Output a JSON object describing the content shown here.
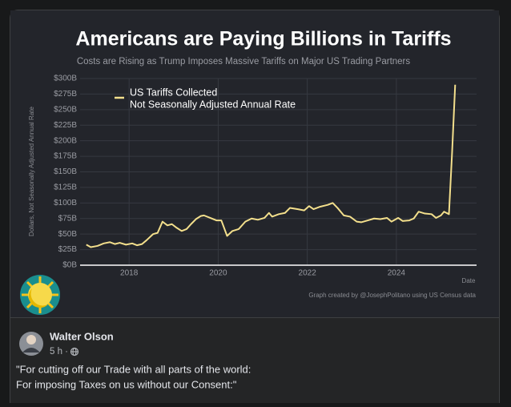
{
  "chart_data": {
    "type": "line",
    "title": "Americans are Paying Billions in Tariffs",
    "subtitle": "Costs are Rising as Trump Imposes Massive Tariffs on Major US Trading Partners",
    "y_label": "Dollars, Not Seasonally Adjusted Annual Rate",
    "x_label": "Date",
    "legend_note": "Not Seasonally Adjusted Annual Rate",
    "caption": "Graph created by @JosephPolitano using US Census data",
    "x": [
      2017.04,
      2017.14,
      2017.29,
      2017.43,
      2017.57,
      2017.68,
      2017.79,
      2017.93,
      2018.07,
      2018.18,
      2018.29,
      2018.39,
      2018.54,
      2018.64,
      2018.75,
      2018.86,
      2018.96,
      2019.07,
      2019.18,
      2019.29,
      2019.39,
      2019.5,
      2019.61,
      2019.68,
      2019.82,
      2019.96,
      2020.07,
      2020.2,
      2020.32,
      2020.46,
      2020.61,
      2020.75,
      2020.89,
      2021.04,
      2021.14,
      2021.21,
      2021.36,
      2021.5,
      2021.61,
      2021.79,
      2021.93,
      2022.04,
      2022.14,
      2022.29,
      2022.46,
      2022.57,
      2022.68,
      2022.82,
      2022.96,
      2023.11,
      2023.21,
      2023.36,
      2023.5,
      2023.64,
      2023.79,
      2023.89,
      2024.04,
      2024.14,
      2024.29,
      2024.39,
      2024.5,
      2024.64,
      2024.79,
      2024.89,
      2025.0,
      2025.07,
      2025.18,
      2025.25,
      2025.32
    ],
    "series": [
      {
        "name": "US Tariffs Collected",
        "color": "#f3df8c",
        "values": [
          33,
          29,
          31,
          35,
          37,
          34,
          36,
          33,
          35,
          32,
          34,
          40,
          50,
          52,
          70,
          64,
          66,
          60,
          55,
          58,
          66,
          74,
          79,
          80,
          76,
          72,
          72,
          47,
          55,
          58,
          70,
          75,
          73,
          76,
          84,
          78,
          82,
          84,
          92,
          90,
          88,
          95,
          90,
          94,
          97,
          100,
          92,
          80,
          78,
          70,
          69,
          72,
          75,
          74,
          76,
          70,
          76,
          71,
          72,
          75,
          86,
          83,
          82,
          76,
          80,
          86,
          82,
          180,
          290
        ]
      }
    ],
    "xlim": [
      2016.9,
      2025.8
    ],
    "xticks": [
      2018,
      2020,
      2022,
      2024
    ],
    "ylim": [
      0,
      300
    ],
    "yticks": [
      {
        "value": 0,
        "label": "$0B"
      },
      {
        "value": 25,
        "label": "$25B"
      },
      {
        "value": 50,
        "label": "$50B"
      },
      {
        "value": 75,
        "label": "$75B"
      },
      {
        "value": 100,
        "label": "$100B"
      },
      {
        "value": 125,
        "label": "$125B"
      },
      {
        "value": 150,
        "label": "$150B"
      },
      {
        "value": 175,
        "label": "$175B"
      },
      {
        "value": 200,
        "label": "$200B"
      },
      {
        "value": 225,
        "label": "$225B"
      },
      {
        "value": 250,
        "label": "$250B"
      },
      {
        "value": 275,
        "label": "$275B"
      },
      {
        "value": 300,
        "label": "$300B"
      }
    ],
    "grid": true
  },
  "post": {
    "author": "Walter Olson",
    "time": "5 h ·",
    "text": [
      "\"For cutting off our Trade with all parts of the world:",
      "For imposing Taxes on us without our Consent:\""
    ]
  }
}
